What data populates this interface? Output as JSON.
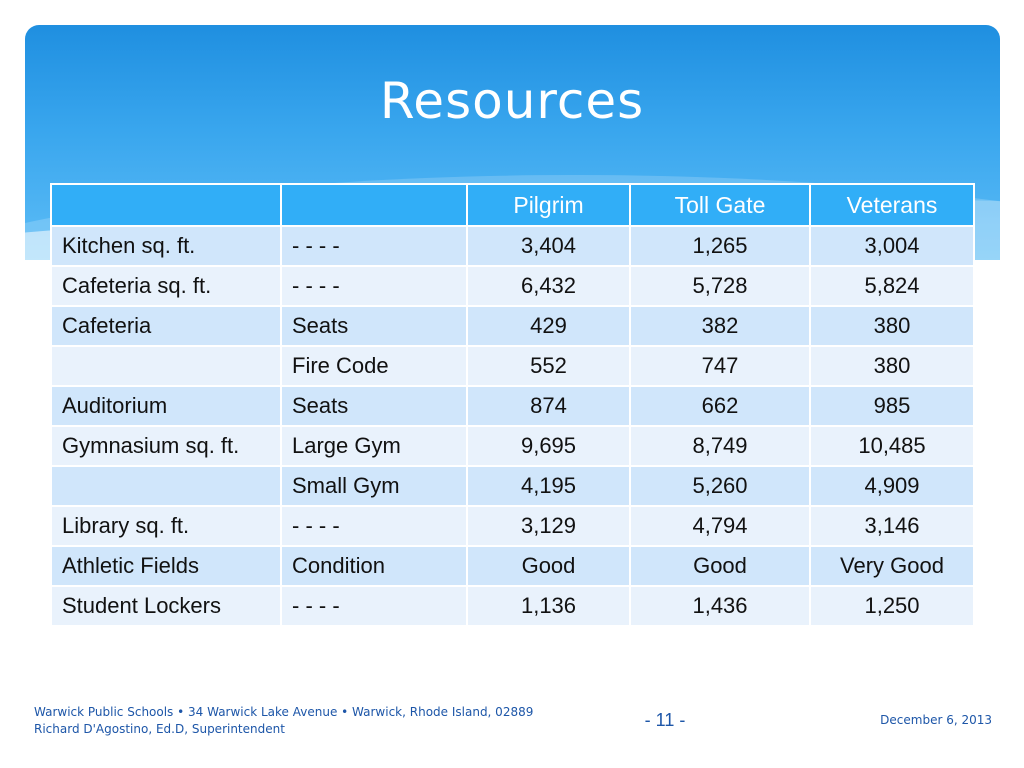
{
  "slide": {
    "title": "Resources",
    "table": {
      "headers": [
        "",
        "",
        "Pilgrim",
        "Toll Gate",
        "Veterans"
      ],
      "rows": [
        [
          "Kitchen sq. ft.",
          "-  -  -  -",
          "3,404",
          "1,265",
          "3,004"
        ],
        [
          "Cafeteria sq. ft.",
          "-  -  -  -",
          "6,432",
          "5,728",
          "5,824"
        ],
        [
          "Cafeteria",
          "Seats",
          "429",
          "382",
          "380"
        ],
        [
          "",
          "Fire Code",
          "552",
          "747",
          "380"
        ],
        [
          "Auditorium",
          "Seats",
          "874",
          "662",
          "985"
        ],
        [
          "Gymnasium sq. ft.",
          "Large Gym",
          "9,695",
          "8,749",
          "10,485"
        ],
        [
          "",
          "Small Gym",
          "4,195",
          "5,260",
          "4,909"
        ],
        [
          "Library sq. ft.",
          "-  -  -  -",
          "3,129",
          "4,794",
          "3,146"
        ],
        [
          "Athletic Fields",
          "Condition",
          "Good",
          "Good",
          "Very Good"
        ],
        [
          "Student Lockers",
          "-  -  -  -",
          "1,136",
          "1,436",
          "1,250"
        ]
      ]
    },
    "footer": {
      "line1": "Warwick Public Schools • 34 Warwick Lake Avenue • Warwick, Rhode Island, 02889",
      "line2": "Richard D'Agostino, Ed.D, Superintendent",
      "page": "- 11 -",
      "date": "December 6, 2013"
    },
    "colors": {
      "header_blue": "#31aef7",
      "row_dark": "#d0e6fb",
      "row_light": "#e9f2fc",
      "footer_text": "#1d56a8"
    }
  }
}
